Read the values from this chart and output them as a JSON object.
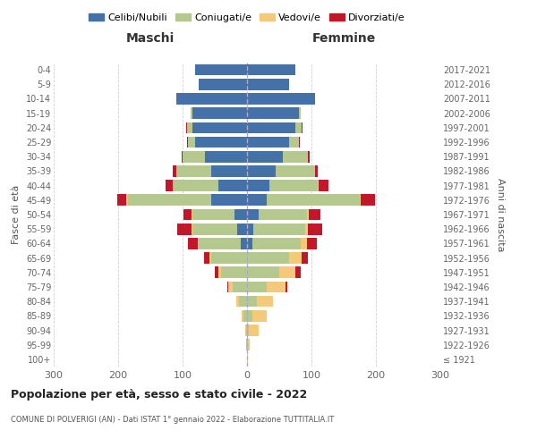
{
  "age_groups": [
    "100+",
    "95-99",
    "90-94",
    "85-89",
    "80-84",
    "75-79",
    "70-74",
    "65-69",
    "60-64",
    "55-59",
    "50-54",
    "45-49",
    "40-44",
    "35-39",
    "30-34",
    "25-29",
    "20-24",
    "15-19",
    "10-14",
    "5-9",
    "0-4"
  ],
  "birth_years": [
    "≤ 1921",
    "1922-1926",
    "1927-1931",
    "1932-1936",
    "1937-1941",
    "1942-1946",
    "1947-1951",
    "1952-1956",
    "1957-1961",
    "1962-1966",
    "1967-1971",
    "1972-1976",
    "1977-1981",
    "1982-1986",
    "1987-1991",
    "1992-1996",
    "1997-2001",
    "2002-2006",
    "2007-2011",
    "2012-2016",
    "2017-2021"
  ],
  "males": {
    "celibi": [
      0,
      0,
      0,
      0,
      0,
      0,
      0,
      0,
      10,
      15,
      20,
      55,
      45,
      55,
      65,
      80,
      85,
      85,
      110,
      75,
      80
    ],
    "coniugati": [
      0,
      1,
      2,
      6,
      12,
      22,
      40,
      55,
      65,
      70,
      65,
      130,
      70,
      55,
      35,
      12,
      8,
      2,
      0,
      0,
      0
    ],
    "vedovi": [
      0,
      0,
      1,
      2,
      5,
      7,
      5,
      3,
      2,
      1,
      1,
      2,
      0,
      0,
      0,
      0,
      0,
      0,
      0,
      0,
      0
    ],
    "divorziati": [
      0,
      0,
      0,
      0,
      0,
      2,
      5,
      8,
      15,
      22,
      12,
      15,
      12,
      5,
      2,
      1,
      1,
      0,
      0,
      0,
      0
    ]
  },
  "females": {
    "nubili": [
      0,
      0,
      0,
      0,
      0,
      0,
      0,
      0,
      8,
      10,
      18,
      30,
      35,
      45,
      55,
      65,
      75,
      80,
      105,
      65,
      75
    ],
    "coniugate": [
      0,
      1,
      3,
      8,
      15,
      30,
      50,
      65,
      75,
      80,
      75,
      145,
      75,
      60,
      40,
      15,
      10,
      3,
      0,
      0,
      0
    ],
    "vedove": [
      1,
      3,
      15,
      22,
      25,
      30,
      25,
      20,
      10,
      5,
      3,
      2,
      1,
      0,
      0,
      0,
      0,
      0,
      0,
      0,
      0
    ],
    "divorziate": [
      0,
      0,
      0,
      0,
      0,
      2,
      8,
      10,
      15,
      22,
      18,
      22,
      15,
      5,
      2,
      2,
      1,
      0,
      0,
      0,
      0
    ]
  },
  "colors": {
    "celibi_nubili": "#4472a8",
    "coniugati": "#b5c98e",
    "vedovi": "#f5c97a",
    "divorziati": "#c0182a"
  },
  "title": "Popolazione per età, sesso e stato civile - 2022",
  "subtitle": "COMUNE DI POLVERIGI (AN) - Dati ISTAT 1° gennaio 2022 - Elaborazione TUTTITALIA.IT",
  "xlabel_left": "Maschi",
  "xlabel_right": "Femmine",
  "ylabel_left": "Fasce di età",
  "ylabel_right": "Anni di nascita",
  "xlim": 300,
  "legend_labels": [
    "Celibi/Nubili",
    "Coniugati/e",
    "Vedovi/e",
    "Divorziati/e"
  ],
  "bg_color": "#ffffff",
  "grid_color": "#cccccc"
}
